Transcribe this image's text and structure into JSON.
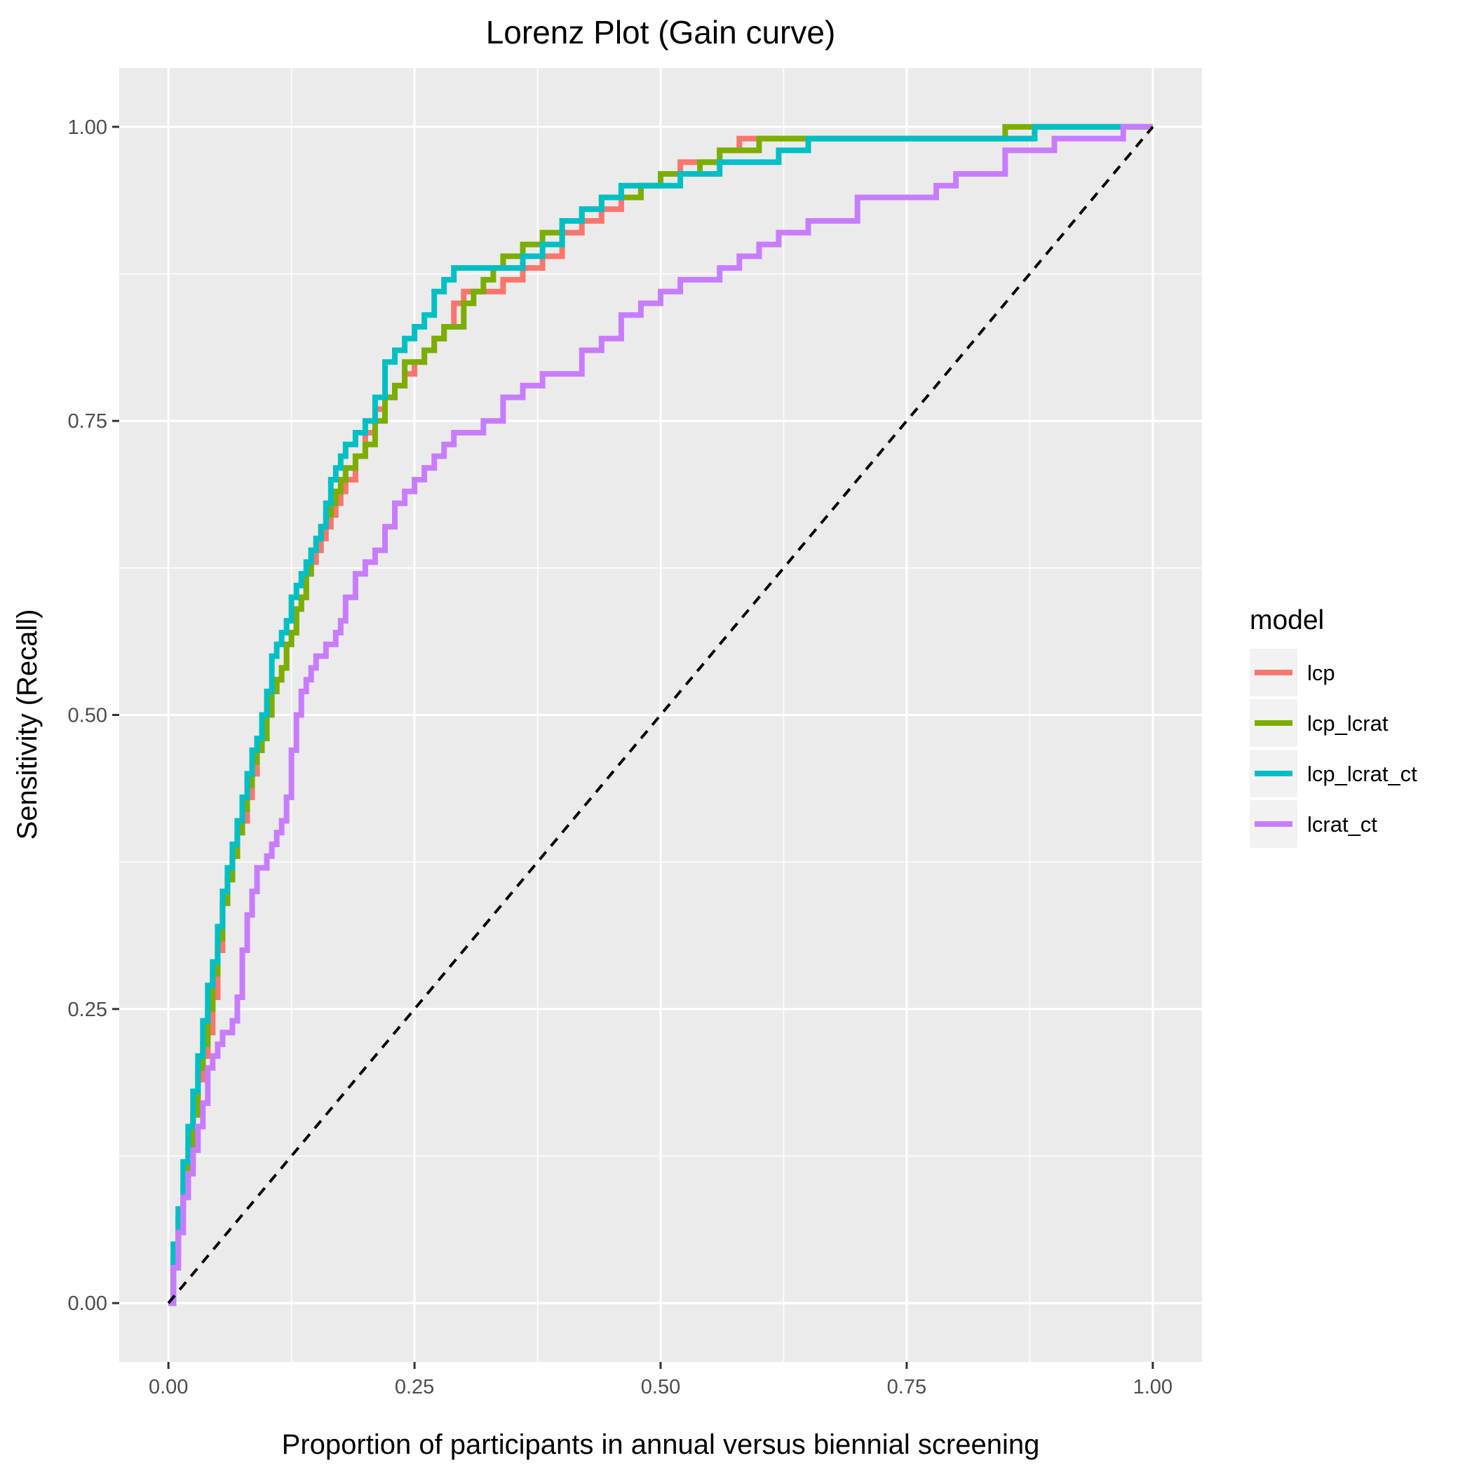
{
  "chart_data": {
    "type": "line",
    "title": "Lorenz Plot (Gain curve)",
    "xlabel": "Proportion of participants in annual versus biennial screening",
    "ylabel": "Sensitivity (Recall)",
    "xlim": [
      -0.05,
      1.05
    ],
    "ylim": [
      -0.05,
      1.05
    ],
    "x_ticks": [
      0.0,
      0.25,
      0.5,
      0.75,
      1.0
    ],
    "x_tick_labels": [
      "0.00",
      "0.25",
      "0.50",
      "0.75",
      "1.00"
    ],
    "y_ticks": [
      0.0,
      0.25,
      0.5,
      0.75,
      1.0
    ],
    "y_tick_labels": [
      "0.00",
      "0.25",
      "0.50",
      "0.75",
      "1.00"
    ],
    "grid": true,
    "legend": {
      "title": "model",
      "position": "right"
    },
    "reference_line": {
      "style": "dashed",
      "color": "#000000",
      "x": [
        0,
        1
      ],
      "y": [
        0,
        1
      ]
    },
    "series": [
      {
        "name": "lcp",
        "color": "#F8766D",
        "x": [
          0,
          0.005,
          0.01,
          0.015,
          0.02,
          0.025,
          0.03,
          0.035,
          0.04,
          0.045,
          0.05,
          0.055,
          0.06,
          0.065,
          0.07,
          0.075,
          0.08,
          0.085,
          0.09,
          0.095,
          0.1,
          0.105,
          0.11,
          0.115,
          0.12,
          0.125,
          0.13,
          0.135,
          0.14,
          0.145,
          0.15,
          0.155,
          0.16,
          0.165,
          0.17,
          0.175,
          0.18,
          0.19,
          0.2,
          0.21,
          0.22,
          0.23,
          0.24,
          0.25,
          0.26,
          0.27,
          0.28,
          0.29,
          0.3,
          0.32,
          0.34,
          0.36,
          0.38,
          0.4,
          0.42,
          0.44,
          0.46,
          0.48,
          0.5,
          0.52,
          0.54,
          0.56,
          0.58,
          0.6,
          0.65,
          0.7,
          0.75,
          0.8,
          0.85,
          0.88,
          0.9,
          0.95,
          1.0
        ],
        "y": [
          0,
          0.03,
          0.06,
          0.09,
          0.12,
          0.16,
          0.19,
          0.21,
          0.23,
          0.26,
          0.3,
          0.34,
          0.36,
          0.38,
          0.4,
          0.41,
          0.43,
          0.45,
          0.47,
          0.49,
          0.5,
          0.52,
          0.53,
          0.54,
          0.56,
          0.57,
          0.59,
          0.6,
          0.62,
          0.63,
          0.64,
          0.65,
          0.66,
          0.67,
          0.68,
          0.69,
          0.7,
          0.72,
          0.74,
          0.76,
          0.77,
          0.78,
          0.79,
          0.8,
          0.81,
          0.82,
          0.83,
          0.85,
          0.86,
          0.86,
          0.87,
          0.88,
          0.89,
          0.91,
          0.92,
          0.93,
          0.94,
          0.95,
          0.96,
          0.97,
          0.97,
          0.98,
          0.99,
          0.99,
          0.99,
          0.99,
          0.99,
          0.99,
          0.99,
          1.0,
          1.0,
          1.0,
          1.0
        ]
      },
      {
        "name": "lcp_lcrat",
        "color": "#7CAE00",
        "x": [
          0,
          0.005,
          0.01,
          0.015,
          0.02,
          0.025,
          0.03,
          0.035,
          0.04,
          0.045,
          0.05,
          0.055,
          0.06,
          0.065,
          0.07,
          0.075,
          0.08,
          0.085,
          0.09,
          0.095,
          0.1,
          0.105,
          0.11,
          0.115,
          0.12,
          0.125,
          0.13,
          0.135,
          0.14,
          0.145,
          0.15,
          0.155,
          0.16,
          0.165,
          0.17,
          0.175,
          0.18,
          0.19,
          0.2,
          0.21,
          0.22,
          0.23,
          0.24,
          0.25,
          0.26,
          0.27,
          0.28,
          0.29,
          0.3,
          0.31,
          0.32,
          0.33,
          0.34,
          0.36,
          0.38,
          0.4,
          0.42,
          0.44,
          0.46,
          0.48,
          0.5,
          0.52,
          0.54,
          0.56,
          0.58,
          0.6,
          0.65,
          0.7,
          0.75,
          0.8,
          0.85,
          0.9,
          0.95,
          1.0
        ],
        "y": [
          0,
          0.04,
          0.07,
          0.1,
          0.13,
          0.16,
          0.2,
          0.22,
          0.25,
          0.28,
          0.31,
          0.34,
          0.36,
          0.38,
          0.4,
          0.42,
          0.44,
          0.46,
          0.47,
          0.48,
          0.5,
          0.52,
          0.53,
          0.54,
          0.56,
          0.57,
          0.59,
          0.6,
          0.62,
          0.64,
          0.65,
          0.66,
          0.67,
          0.68,
          0.69,
          0.7,
          0.71,
          0.72,
          0.73,
          0.75,
          0.77,
          0.78,
          0.8,
          0.8,
          0.81,
          0.82,
          0.83,
          0.83,
          0.85,
          0.86,
          0.87,
          0.88,
          0.89,
          0.9,
          0.91,
          0.92,
          0.93,
          0.94,
          0.94,
          0.95,
          0.96,
          0.96,
          0.97,
          0.98,
          0.98,
          0.99,
          0.99,
          0.99,
          0.99,
          0.99,
          1.0,
          1.0,
          1.0,
          1.0
        ]
      },
      {
        "name": "lcp_lcrat_ct",
        "color": "#00BFC4",
        "x": [
          0,
          0.005,
          0.01,
          0.015,
          0.02,
          0.025,
          0.03,
          0.035,
          0.04,
          0.045,
          0.05,
          0.055,
          0.06,
          0.065,
          0.07,
          0.075,
          0.08,
          0.085,
          0.09,
          0.095,
          0.1,
          0.105,
          0.11,
          0.115,
          0.12,
          0.125,
          0.13,
          0.135,
          0.14,
          0.145,
          0.15,
          0.155,
          0.16,
          0.165,
          0.17,
          0.175,
          0.18,
          0.19,
          0.2,
          0.21,
          0.22,
          0.23,
          0.24,
          0.25,
          0.26,
          0.27,
          0.28,
          0.29,
          0.3,
          0.32,
          0.34,
          0.36,
          0.38,
          0.4,
          0.42,
          0.44,
          0.46,
          0.48,
          0.5,
          0.52,
          0.54,
          0.56,
          0.58,
          0.6,
          0.62,
          0.65,
          0.7,
          0.75,
          0.8,
          0.85,
          0.88,
          0.9,
          0.95,
          1.0
        ],
        "y": [
          0,
          0.05,
          0.08,
          0.12,
          0.15,
          0.18,
          0.21,
          0.24,
          0.27,
          0.29,
          0.32,
          0.35,
          0.37,
          0.39,
          0.41,
          0.43,
          0.45,
          0.47,
          0.48,
          0.5,
          0.52,
          0.55,
          0.56,
          0.57,
          0.58,
          0.6,
          0.61,
          0.62,
          0.63,
          0.64,
          0.65,
          0.66,
          0.68,
          0.7,
          0.71,
          0.72,
          0.73,
          0.74,
          0.75,
          0.77,
          0.8,
          0.81,
          0.82,
          0.83,
          0.84,
          0.86,
          0.87,
          0.88,
          0.88,
          0.88,
          0.88,
          0.89,
          0.9,
          0.92,
          0.93,
          0.94,
          0.95,
          0.95,
          0.95,
          0.96,
          0.96,
          0.97,
          0.97,
          0.97,
          0.98,
          0.99,
          0.99,
          0.99,
          0.99,
          0.99,
          1.0,
          1.0,
          1.0,
          1.0
        ]
      },
      {
        "name": "lcrat_ct",
        "color": "#C77CFF",
        "x": [
          0,
          0.005,
          0.01,
          0.015,
          0.02,
          0.025,
          0.03,
          0.035,
          0.04,
          0.045,
          0.05,
          0.055,
          0.06,
          0.065,
          0.07,
          0.075,
          0.08,
          0.085,
          0.09,
          0.095,
          0.1,
          0.105,
          0.11,
          0.115,
          0.12,
          0.125,
          0.13,
          0.135,
          0.14,
          0.145,
          0.15,
          0.155,
          0.16,
          0.165,
          0.17,
          0.175,
          0.18,
          0.19,
          0.2,
          0.21,
          0.22,
          0.23,
          0.24,
          0.25,
          0.26,
          0.27,
          0.28,
          0.29,
          0.3,
          0.32,
          0.34,
          0.36,
          0.38,
          0.4,
          0.42,
          0.44,
          0.46,
          0.48,
          0.5,
          0.52,
          0.54,
          0.56,
          0.58,
          0.6,
          0.62,
          0.65,
          0.7,
          0.75,
          0.78,
          0.8,
          0.85,
          0.9,
          0.95,
          0.97,
          1.0
        ],
        "y": [
          0,
          0.03,
          0.06,
          0.09,
          0.11,
          0.13,
          0.15,
          0.17,
          0.2,
          0.21,
          0.22,
          0.23,
          0.23,
          0.24,
          0.26,
          0.3,
          0.33,
          0.35,
          0.37,
          0.37,
          0.38,
          0.39,
          0.4,
          0.41,
          0.43,
          0.47,
          0.5,
          0.52,
          0.53,
          0.54,
          0.55,
          0.55,
          0.56,
          0.56,
          0.57,
          0.58,
          0.6,
          0.62,
          0.63,
          0.64,
          0.66,
          0.68,
          0.69,
          0.7,
          0.71,
          0.72,
          0.73,
          0.74,
          0.74,
          0.75,
          0.77,
          0.78,
          0.79,
          0.79,
          0.81,
          0.82,
          0.84,
          0.85,
          0.86,
          0.87,
          0.87,
          0.88,
          0.89,
          0.9,
          0.91,
          0.92,
          0.94,
          0.94,
          0.95,
          0.96,
          0.98,
          0.99,
          0.99,
          1.0,
          1.0
        ]
      }
    ]
  }
}
